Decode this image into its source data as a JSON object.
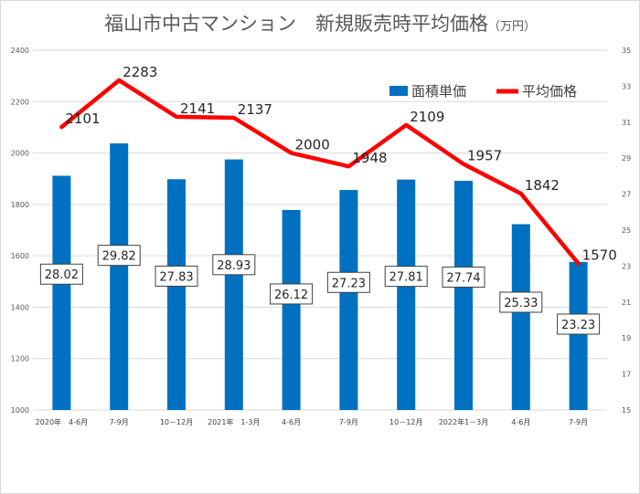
{
  "chart_data": {
    "type": "bar",
    "title": "福山市中古マンション　新規販売時平均価格",
    "title_unit": "（万円）",
    "categories": [
      "2020年　4-6月",
      "7-9月",
      "10－12月",
      "2021年　1-3月",
      "4-6月",
      "7-9月",
      "10－12月",
      "2022年1－3月",
      "4-6月",
      "7-9月"
    ],
    "series": [
      {
        "name": "面積単価",
        "type": "bar",
        "axis": "right",
        "color": "#0070c0",
        "values": [
          28.02,
          29.82,
          27.83,
          28.93,
          26.12,
          27.23,
          27.81,
          27.74,
          25.33,
          23.23
        ],
        "labels": [
          "28.02",
          "29.82",
          "27.83",
          "28.93",
          "26.12",
          "27.23",
          "27.81",
          "27.74",
          "25.33",
          "23.23"
        ]
      },
      {
        "name": "平均価格",
        "type": "line",
        "axis": "left",
        "color": "#ff0000",
        "values": [
          2101,
          2283,
          2141,
          2137,
          2000,
          1948,
          2109,
          1957,
          1842,
          1570
        ],
        "labels": [
          "2101",
          "2283",
          "2141",
          "2137",
          "2000",
          "1948",
          "2109",
          "1957",
          "1842",
          "1570"
        ]
      }
    ],
    "y_left": {
      "min": 1000,
      "max": 2400,
      "step": 200,
      "ticks": [
        "1000",
        "1200",
        "1400",
        "1600",
        "1800",
        "2000",
        "2200",
        "2400"
      ]
    },
    "y_right": {
      "min": 15,
      "max": 35,
      "step": 2,
      "ticks": [
        "15",
        "17",
        "19",
        "21",
        "23",
        "25",
        "27",
        "29",
        "31",
        "33",
        "35"
      ]
    },
    "grid": true,
    "legend_position": "top-right"
  }
}
